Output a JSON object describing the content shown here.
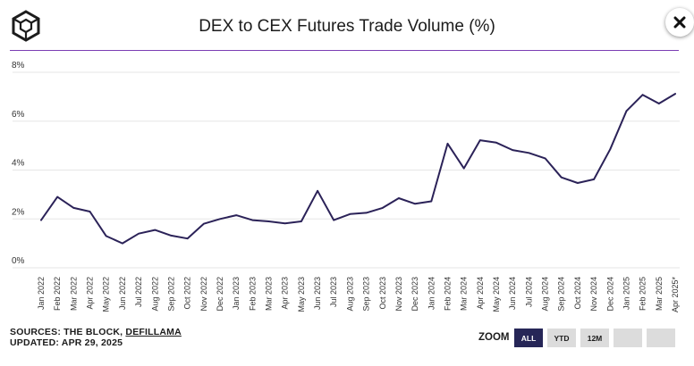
{
  "title": "DEX to CEX Futures Trade Volume (%)",
  "colors": {
    "line": "#2b2258",
    "accent": "#7b3fb4",
    "grid": "#e6e6e6",
    "zoom_active": "#262657"
  },
  "icons": {
    "logo": "cube-logo-icon",
    "close": "close-icon"
  },
  "sources": {
    "prefix": "SOURCES: THE BLOCK, ",
    "link": "DEFILLAMA",
    "updated": "UPDATED: APR 29, 2025"
  },
  "zoom": {
    "label": "ZOOM",
    "buttons": [
      "ALL",
      "YTD",
      "12M",
      "",
      ""
    ],
    "active": "ALL"
  },
  "chart_data": {
    "type": "line",
    "title": "DEX to CEX Futures Trade Volume (%)",
    "xlabel": "",
    "ylabel": "",
    "ylim": [
      0,
      8
    ],
    "y_ticks": [
      "0%",
      "2%",
      "4%",
      "6%",
      "8%"
    ],
    "grid": true,
    "categories": [
      "Jan 2022",
      "Feb 2022",
      "Mar 2022",
      "Apr 2022",
      "May 2022",
      "Jun 2022",
      "Jul 2022",
      "Aug 2022",
      "Sep 2022",
      "Oct 2022",
      "Nov 2022",
      "Dec 2022",
      "Jan 2023",
      "Feb 2023",
      "Mar 2023",
      "Apr 2023",
      "May 2023",
      "Jun 2023",
      "Jul 2023",
      "Aug 2023",
      "Sep 2023",
      "Oct 2023",
      "Nov 2023",
      "Dec 2023",
      "Jan 2024",
      "Feb 2024",
      "Mar 2024",
      "Apr 2024",
      "May 2024",
      "Jun 2024",
      "Jul 2024",
      "Aug 2024",
      "Sep 2024",
      "Oct 2024",
      "Nov 2024",
      "Dec 2024",
      "Jan 2025",
      "Feb 2025",
      "Mar 2025",
      "Apr 2025*"
    ],
    "series": [
      {
        "name": "DEX to CEX Futures Trade Volume (%)",
        "values": [
          1.95,
          2.9,
          2.45,
          2.3,
          1.3,
          1.0,
          1.4,
          1.55,
          1.32,
          1.2,
          1.8,
          2.0,
          2.15,
          1.95,
          1.9,
          1.82,
          1.9,
          3.15,
          1.95,
          2.2,
          2.25,
          2.45,
          2.85,
          2.62,
          2.72,
          5.08,
          4.07,
          5.22,
          5.12,
          4.82,
          4.7,
          4.48,
          3.7,
          3.47,
          3.62,
          4.85,
          6.42,
          7.08,
          6.72,
          7.12
        ]
      }
    ]
  }
}
